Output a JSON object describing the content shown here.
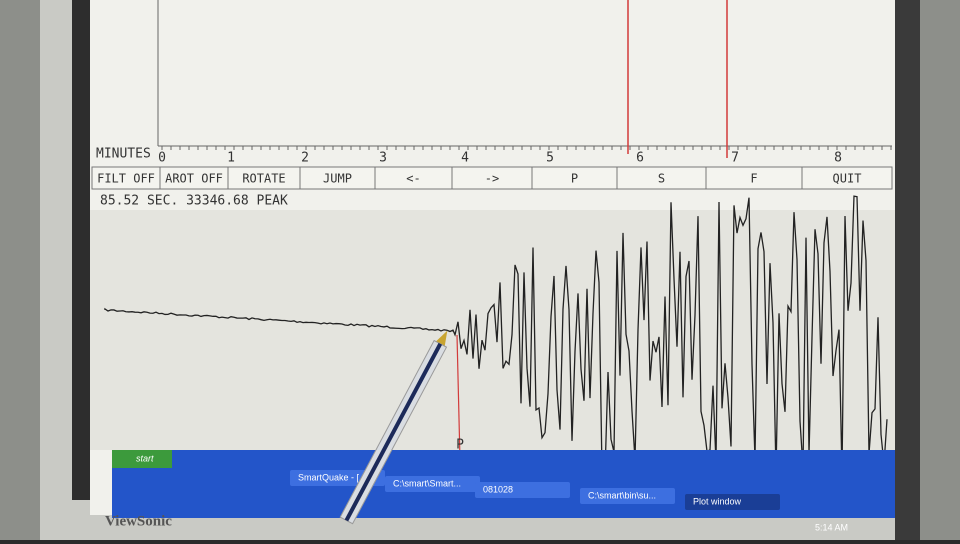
{
  "minutes_axis": {
    "label": "MINUTES",
    "ticks": [
      "0",
      "1",
      "2",
      "3",
      "4",
      "5",
      "6",
      "7",
      "8"
    ]
  },
  "buttons": [
    "FILT OFF",
    "AROT OFF",
    "ROTATE",
    "JUMP",
    "<-",
    "->",
    "P",
    "S",
    "F",
    "QUIT"
  ],
  "status": "85.52 SEC. 33346.68 PEAK",
  "pick_label": "P",
  "taskbar": {
    "start": "start",
    "items": [
      "SmartQuake - [...",
      "C:\\smart\\Smart...",
      "081028",
      "C:\\smart\\bin\\su...",
      "Plot window"
    ],
    "clock": "5:14 AM"
  },
  "brand": "ViewSonic"
}
